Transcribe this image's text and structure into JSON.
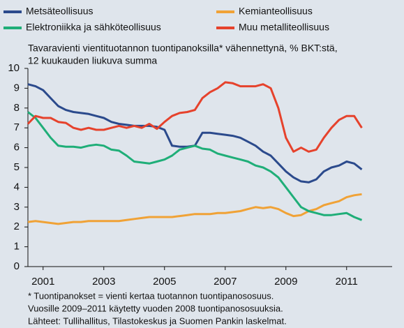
{
  "chart_data": {
    "type": "line",
    "subtitle": [
      "Tavaravienti vientituotannon tuontipanoksilla* vähennettynä, % BKT:stä,",
      "12 kuukauden liukuva summa"
    ],
    "notes": [
      "* Tuontipanokset = vienti kertaa tuotannon tuontipanososuus.",
      "Vuosille 2009–2011 käytetty vuoden 2008 tuontipanososuuksia.",
      "Lähteet: Tullihallitus, Tilastokeskus ja Suomen Pankin laskelmat."
    ],
    "x": [
      2000.5,
      2000.75,
      2001,
      2001.25,
      2001.5,
      2001.75,
      2002,
      2002.25,
      2002.5,
      2002.75,
      2003,
      2003.25,
      2003.5,
      2003.75,
      2004,
      2004.25,
      2004.5,
      2004.75,
      2005,
      2005.25,
      2005.5,
      2005.75,
      2006,
      2006.25,
      2006.5,
      2006.75,
      2007,
      2007.25,
      2007.5,
      2007.75,
      2008,
      2008.25,
      2008.5,
      2008.75,
      2009,
      2009.25,
      2009.5,
      2009.75,
      2010,
      2010.25,
      2010.5,
      2010.75,
      2011,
      2011.25,
      2011.5
    ],
    "series": [
      {
        "name": "Metsäteollisuus",
        "color": "#2b4a8c",
        "values": [
          9.2,
          9.1,
          8.9,
          8.5,
          8.1,
          7.9,
          7.8,
          7.75,
          7.7,
          7.6,
          7.5,
          7.3,
          7.2,
          7.15,
          7.1,
          7.1,
          7.1,
          7.05,
          6.9,
          6.1,
          6.05,
          6.05,
          6.1,
          6.75,
          6.75,
          6.7,
          6.65,
          6.6,
          6.5,
          6.3,
          6.1,
          5.8,
          5.6,
          5.2,
          4.8,
          4.5,
          4.3,
          4.25,
          4.4,
          4.8,
          5.0,
          5.1,
          5.3,
          5.2,
          4.9
        ]
      },
      {
        "name": "Kemianteollisuus",
        "color": "#f0a236",
        "values": [
          2.25,
          2.3,
          2.25,
          2.2,
          2.15,
          2.2,
          2.25,
          2.25,
          2.3,
          2.3,
          2.3,
          2.3,
          2.3,
          2.35,
          2.4,
          2.45,
          2.5,
          2.5,
          2.5,
          2.5,
          2.55,
          2.6,
          2.65,
          2.65,
          2.65,
          2.7,
          2.7,
          2.75,
          2.8,
          2.9,
          3.0,
          2.95,
          3.0,
          2.9,
          2.7,
          2.55,
          2.6,
          2.8,
          2.9,
          3.1,
          3.2,
          3.3,
          3.5,
          3.6,
          3.65
        ]
      },
      {
        "name": "Elektroniikka  ja sähköteollisuus",
        "color": "#1fae78",
        "values": [
          7.8,
          7.5,
          7.0,
          6.5,
          6.1,
          6.05,
          6.05,
          6.0,
          6.1,
          6.15,
          6.1,
          5.9,
          5.85,
          5.6,
          5.3,
          5.25,
          5.2,
          5.3,
          5.4,
          5.6,
          5.9,
          6.0,
          6.1,
          5.95,
          5.9,
          5.7,
          5.6,
          5.5,
          5.4,
          5.3,
          5.1,
          5.0,
          4.8,
          4.5,
          4.0,
          3.5,
          3.0,
          2.8,
          2.7,
          2.6,
          2.6,
          2.65,
          2.7,
          2.5,
          2.35
        ]
      },
      {
        "name": "Muu metalliteollisuus",
        "color": "#e6422c",
        "values": [
          7.2,
          7.6,
          7.5,
          7.5,
          7.3,
          7.25,
          7.0,
          6.9,
          7.0,
          6.9,
          6.9,
          7.0,
          7.1,
          7.0,
          7.1,
          7.0,
          7.2,
          6.95,
          7.3,
          7.6,
          7.75,
          7.8,
          7.9,
          8.5,
          8.8,
          9.0,
          9.3,
          9.25,
          9.1,
          9.1,
          9.1,
          9.2,
          9.0,
          8.0,
          6.5,
          5.8,
          6.0,
          5.8,
          5.9,
          6.5,
          7.0,
          7.4,
          7.6,
          7.6,
          7.0
        ]
      }
    ],
    "xlim": [
      2000.5,
      2012.5
    ],
    "xticks": [
      2001,
      2003,
      2005,
      2007,
      2009,
      2011
    ],
    "ylim": [
      0,
      10
    ],
    "yticks": [
      0,
      1,
      2,
      3,
      4,
      5,
      6,
      7,
      8,
      9,
      10
    ]
  }
}
